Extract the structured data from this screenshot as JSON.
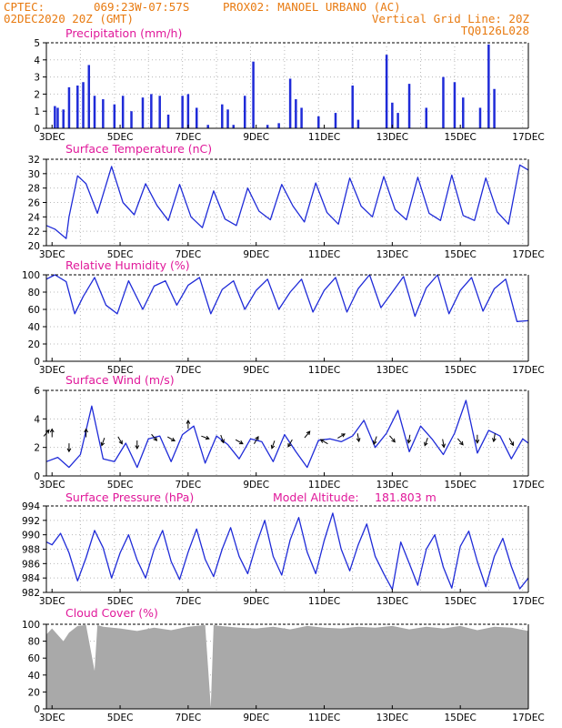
{
  "header": {
    "source": "CPTEC:",
    "coords": "069:23W-07:57S",
    "station": "PROX02: MANOEL URBANO (AC)",
    "run_time": "02DEC2020 20Z (GMT)",
    "grid_note": "Vertical Grid Line: 20Z",
    "model_code": "TQ0126L028"
  },
  "colors": {
    "header_orange": "#e87a10",
    "title_magenta": "#e0189a",
    "series_blue": "#1f2bd8",
    "cloud_gray": "#a9a9a9",
    "arrow_black": "#000000"
  },
  "x_axis": {
    "start": "2020-12-02T20:00Z",
    "end": "2020-12-17T00:00Z",
    "ticks": [
      {
        "date": "2020-12-03",
        "label": "3DEC"
      },
      {
        "date": "2020-12-05",
        "label": "5DEC"
      },
      {
        "date": "2020-12-07",
        "label": "7DEC"
      },
      {
        "date": "2020-12-09",
        "label": "9DEC"
      },
      {
        "date": "2020-12-11",
        "label": "11DEC"
      },
      {
        "date": "2020-12-13",
        "label": "13DEC"
      },
      {
        "date": "2020-12-15",
        "label": "15DEC"
      },
      {
        "date": "2020-12-17",
        "label": "17DEC"
      }
    ]
  },
  "chart_data": [
    {
      "type": "bar",
      "title": "Precipitation (mm/h)",
      "ylim": [
        0,
        5
      ],
      "yticks": [
        0,
        1,
        2,
        3,
        4,
        5
      ],
      "grid": "dotted",
      "color": "#1f2bd8",
      "x": [
        "2020-12-03T02:00Z",
        "2020-12-03T04:00Z",
        "2020-12-03T08:00Z",
        "2020-12-03T12:00Z",
        "2020-12-03T18:00Z",
        "2020-12-03T22:00Z",
        "2020-12-04T02:00Z",
        "2020-12-04T06:00Z",
        "2020-12-04T12:00Z",
        "2020-12-04T20:00Z",
        "2020-12-05T02:00Z",
        "2020-12-05T08:00Z",
        "2020-12-05T16:00Z",
        "2020-12-05T22:00Z",
        "2020-12-06T04:00Z",
        "2020-12-06T10:00Z",
        "2020-12-06T20:00Z",
        "2020-12-07T00:00Z",
        "2020-12-07T06:00Z",
        "2020-12-07T14:00Z",
        "2020-12-08T00:00Z",
        "2020-12-08T04:00Z",
        "2020-12-08T08:00Z",
        "2020-12-08T16:00Z",
        "2020-12-08T22:00Z",
        "2020-12-09T08:00Z",
        "2020-12-09T16:00Z",
        "2020-12-10T00:00Z",
        "2020-12-10T04:00Z",
        "2020-12-10T08:00Z",
        "2020-12-10T20:00Z",
        "2020-12-11T08:00Z",
        "2020-12-11T20:00Z",
        "2020-12-12T00:00Z",
        "2020-12-12T20:00Z",
        "2020-12-13T00:00Z",
        "2020-12-13T04:00Z",
        "2020-12-13T12:00Z",
        "2020-12-14T00:00Z",
        "2020-12-14T12:00Z",
        "2020-12-14T20:00Z",
        "2020-12-15T02:00Z",
        "2020-12-15T14:00Z",
        "2020-12-15T20:00Z",
        "2020-12-16T00:00Z"
      ],
      "values": [
        1.3,
        1.2,
        1.1,
        2.4,
        2.5,
        2.7,
        3.7,
        1.9,
        1.7,
        1.4,
        1.9,
        1.0,
        1.8,
        2.0,
        1.9,
        0.8,
        1.9,
        2.0,
        1.2,
        0.2,
        1.4,
        1.1,
        0.2,
        1.9,
        3.9,
        0.2,
        0.3,
        2.9,
        1.7,
        1.2,
        0.7,
        0.9,
        2.5,
        0.5,
        4.3,
        1.5,
        0.9,
        2.6,
        1.2,
        3.0,
        2.7,
        1.8,
        1.2,
        4.9,
        2.3
      ]
    },
    {
      "type": "line",
      "title": "Surface Temperature (nC)",
      "ylim": [
        20,
        32
      ],
      "yticks": [
        20,
        22,
        24,
        26,
        28,
        30,
        32
      ],
      "grid": "dotted",
      "color": "#1f2bd8",
      "x": [
        "2020-12-02T20:00Z",
        "2020-12-03T02:00Z",
        "2020-12-03T10:00Z",
        "2020-12-03T12:00Z",
        "2020-12-03T18:00Z",
        "2020-12-04T00:00Z",
        "2020-12-04T08:00Z",
        "2020-12-04T18:00Z",
        "2020-12-05T02:00Z",
        "2020-12-05T10:00Z",
        "2020-12-05T18:00Z",
        "2020-12-06T02:00Z",
        "2020-12-06T10:00Z",
        "2020-12-06T18:00Z",
        "2020-12-07T02:00Z",
        "2020-12-07T10:00Z",
        "2020-12-07T18:00Z",
        "2020-12-08T02:00Z",
        "2020-12-08T10:00Z",
        "2020-12-08T18:00Z",
        "2020-12-09T02:00Z",
        "2020-12-09T10:00Z",
        "2020-12-09T18:00Z",
        "2020-12-10T02:00Z",
        "2020-12-10T10:00Z",
        "2020-12-10T18:00Z",
        "2020-12-11T02:00Z",
        "2020-12-11T10:00Z",
        "2020-12-11T18:00Z",
        "2020-12-12T02:00Z",
        "2020-12-12T10:00Z",
        "2020-12-12T18:00Z",
        "2020-12-13T02:00Z",
        "2020-12-13T10:00Z",
        "2020-12-13T18:00Z",
        "2020-12-14T02:00Z",
        "2020-12-14T10:00Z",
        "2020-12-14T18:00Z",
        "2020-12-15T02:00Z",
        "2020-12-15T10:00Z",
        "2020-12-15T18:00Z",
        "2020-12-16T02:00Z",
        "2020-12-16T10:00Z",
        "2020-12-16T18:00Z",
        "2020-12-17T00:00Z"
      ],
      "values": [
        22.8,
        22.3,
        21.0,
        24.0,
        29.7,
        28.6,
        24.5,
        31.0,
        26.0,
        24.3,
        28.6,
        25.6,
        23.5,
        28.5,
        24.0,
        22.5,
        27.6,
        23.7,
        22.8,
        28.0,
        24.8,
        23.6,
        28.5,
        25.5,
        23.3,
        28.7,
        24.6,
        23.0,
        29.4,
        25.5,
        24.0,
        29.6,
        25.0,
        23.6,
        29.5,
        24.5,
        23.5,
        29.8,
        24.2,
        23.5,
        29.4,
        24.7,
        23.0,
        31.2,
        30.5
      ]
    },
    {
      "type": "line",
      "title": "Relative Humidity (%)",
      "ylim": [
        0,
        100
      ],
      "yticks": [
        0,
        20,
        40,
        60,
        80,
        100
      ],
      "grid": "dotted",
      "color": "#1f2bd8",
      "x": [
        "2020-12-02T20:00Z",
        "2020-12-03T02:00Z",
        "2020-12-03T10:00Z",
        "2020-12-03T16:00Z",
        "2020-12-03T22:00Z",
        "2020-12-04T06:00Z",
        "2020-12-04T14:00Z",
        "2020-12-04T22:00Z",
        "2020-12-05T06:00Z",
        "2020-12-05T16:00Z",
        "2020-12-06T00:00Z",
        "2020-12-06T08:00Z",
        "2020-12-06T16:00Z",
        "2020-12-07T00:00Z",
        "2020-12-07T08:00Z",
        "2020-12-07T16:00Z",
        "2020-12-08T00:00Z",
        "2020-12-08T08:00Z",
        "2020-12-08T16:00Z",
        "2020-12-09T00:00Z",
        "2020-12-09T08:00Z",
        "2020-12-09T16:00Z",
        "2020-12-10T00:00Z",
        "2020-12-10T08:00Z",
        "2020-12-10T16:00Z",
        "2020-12-11T00:00Z",
        "2020-12-11T08:00Z",
        "2020-12-11T16:00Z",
        "2020-12-12T00:00Z",
        "2020-12-12T08:00Z",
        "2020-12-12T16:00Z",
        "2020-12-13T00:00Z",
        "2020-12-13T08:00Z",
        "2020-12-13T16:00Z",
        "2020-12-14T00:00Z",
        "2020-12-14T08:00Z",
        "2020-12-14T16:00Z",
        "2020-12-15T00:00Z",
        "2020-12-15T08:00Z",
        "2020-12-15T16:00Z",
        "2020-12-16T00:00Z",
        "2020-12-16T08:00Z",
        "2020-12-16T16:00Z",
        "2020-12-17T00:00Z"
      ],
      "values": [
        95,
        100,
        92,
        55,
        75,
        97,
        65,
        55,
        93,
        60,
        87,
        93,
        65,
        88,
        97,
        55,
        83,
        93,
        60,
        82,
        95,
        60,
        80,
        95,
        57,
        82,
        97,
        57,
        84,
        100,
        62,
        80,
        98,
        52,
        85,
        100,
        55,
        82,
        97,
        58,
        84,
        95,
        46,
        47
      ]
    },
    {
      "type": "line",
      "title": "Surface Wind (m/s)",
      "ylim": [
        0,
        6
      ],
      "yticks": [
        0,
        2,
        4,
        6
      ],
      "grid": "dotted",
      "color": "#1f2bd8",
      "x": [
        "2020-12-02T20:00Z",
        "2020-12-03T04:00Z",
        "2020-12-03T12:00Z",
        "2020-12-03T20:00Z",
        "2020-12-04T04:00Z",
        "2020-12-04T12:00Z",
        "2020-12-04T20:00Z",
        "2020-12-05T04:00Z",
        "2020-12-05T12:00Z",
        "2020-12-05T20:00Z",
        "2020-12-06T04:00Z",
        "2020-12-06T12:00Z",
        "2020-12-06T20:00Z",
        "2020-12-07T04:00Z",
        "2020-12-07T12:00Z",
        "2020-12-07T20:00Z",
        "2020-12-08T04:00Z",
        "2020-12-08T12:00Z",
        "2020-12-08T20:00Z",
        "2020-12-09T04:00Z",
        "2020-12-09T12:00Z",
        "2020-12-09T20:00Z",
        "2020-12-10T04:00Z",
        "2020-12-10T12:00Z",
        "2020-12-10T20:00Z",
        "2020-12-11T04:00Z",
        "2020-12-11T12:00Z",
        "2020-12-11T20:00Z",
        "2020-12-12T04:00Z",
        "2020-12-12T12:00Z",
        "2020-12-12T20:00Z",
        "2020-12-13T04:00Z",
        "2020-12-13T12:00Z",
        "2020-12-13T20:00Z",
        "2020-12-14T04:00Z",
        "2020-12-14T12:00Z",
        "2020-12-14T20:00Z",
        "2020-12-15T04:00Z",
        "2020-12-15T12:00Z",
        "2020-12-15T20:00Z",
        "2020-12-16T04:00Z",
        "2020-12-16T12:00Z",
        "2020-12-16T20:00Z",
        "2020-12-17T00:00Z"
      ],
      "values": [
        1.0,
        1.3,
        0.6,
        1.5,
        4.9,
        1.2,
        1.0,
        2.3,
        0.6,
        2.6,
        2.8,
        1.0,
        2.9,
        3.5,
        0.9,
        2.8,
        2.2,
        1.2,
        2.6,
        2.4,
        1.0,
        2.9,
        1.7,
        0.6,
        2.5,
        2.6,
        2.4,
        2.8,
        3.9,
        2.0,
        3.0,
        4.6,
        1.7,
        3.5,
        2.6,
        1.5,
        3.0,
        5.3,
        1.6,
        3.2,
        2.8,
        1.2,
        2.6,
        2.3
      ],
      "arrows": {
        "x": [
          "2020-12-02T20:00Z",
          "2020-12-03T00:00Z",
          "2020-12-03T12:00Z",
          "2020-12-04T00:00Z",
          "2020-12-04T12:00Z",
          "2020-12-05T00:00Z",
          "2020-12-05T12:00Z",
          "2020-12-06T00:00Z",
          "2020-12-06T12:00Z",
          "2020-12-07T00:00Z",
          "2020-12-07T12:00Z",
          "2020-12-08T00:00Z",
          "2020-12-08T12:00Z",
          "2020-12-09T00:00Z",
          "2020-12-09T12:00Z",
          "2020-12-10T00:00Z",
          "2020-12-10T12:00Z",
          "2020-12-11T00:00Z",
          "2020-12-11T12:00Z",
          "2020-12-12T00:00Z",
          "2020-12-12T12:00Z",
          "2020-12-13T00:00Z",
          "2020-12-13T12:00Z",
          "2020-12-14T00:00Z",
          "2020-12-14T12:00Z",
          "2020-12-15T00:00Z",
          "2020-12-15T12:00Z",
          "2020-12-16T00:00Z",
          "2020-12-16T12:00Z"
        ],
        "speed": [
          3.0,
          3.0,
          2.0,
          3.0,
          2.4,
          2.5,
          2.2,
          2.7,
          2.6,
          3.6,
          2.7,
          2.6,
          2.4,
          2.5,
          2.2,
          2.3,
          2.9,
          2.4,
          2.8,
          2.7,
          2.5,
          2.6,
          2.6,
          2.4,
          2.3,
          2.4,
          2.6,
          2.7,
          2.4
        ],
        "direction_deg": [
          40,
          0,
          180,
          0,
          200,
          150,
          180,
          140,
          120,
          0,
          110,
          160,
          120,
          30,
          200,
          210,
          40,
          300,
          60,
          170,
          200,
          140,
          190,
          200,
          170,
          140,
          180,
          190,
          150
        ]
      }
    },
    {
      "type": "line",
      "title": "Surface Pressure (hPa)",
      "ylim": [
        982,
        994
      ],
      "yticks": [
        982,
        984,
        986,
        988,
        990,
        992,
        994
      ],
      "grid": "dotted",
      "color": "#1f2bd8",
      "annotation": {
        "label": "Model Altitude:",
        "value": "181.803 m"
      },
      "x": [
        "2020-12-02T20:00Z",
        "2020-12-03T00:00Z",
        "2020-12-03T06:00Z",
        "2020-12-03T12:00Z",
        "2020-12-03T18:00Z",
        "2020-12-04T00:00Z",
        "2020-12-04T06:00Z",
        "2020-12-04T12:00Z",
        "2020-12-04T18:00Z",
        "2020-12-05T00:00Z",
        "2020-12-05T06:00Z",
        "2020-12-05T12:00Z",
        "2020-12-05T18:00Z",
        "2020-12-06T00:00Z",
        "2020-12-06T06:00Z",
        "2020-12-06T12:00Z",
        "2020-12-06T18:00Z",
        "2020-12-07T00:00Z",
        "2020-12-07T06:00Z",
        "2020-12-07T12:00Z",
        "2020-12-07T18:00Z",
        "2020-12-08T00:00Z",
        "2020-12-08T06:00Z",
        "2020-12-08T12:00Z",
        "2020-12-08T18:00Z",
        "2020-12-09T00:00Z",
        "2020-12-09T06:00Z",
        "2020-12-09T12:00Z",
        "2020-12-09T18:00Z",
        "2020-12-10T00:00Z",
        "2020-12-10T06:00Z",
        "2020-12-10T12:00Z",
        "2020-12-10T18:00Z",
        "2020-12-11T00:00Z",
        "2020-12-11T06:00Z",
        "2020-12-11T12:00Z",
        "2020-12-11T18:00Z",
        "2020-12-12T00:00Z",
        "2020-12-12T06:00Z",
        "2020-12-12T12:00Z",
        "2020-12-12T18:00Z",
        "2020-12-13T00:00Z",
        "2020-12-13T06:00Z",
        "2020-12-13T12:00Z",
        "2020-12-13T18:00Z",
        "2020-12-14T00:00Z",
        "2020-12-14T06:00Z",
        "2020-12-14T12:00Z",
        "2020-12-14T18:00Z",
        "2020-12-15T00:00Z",
        "2020-12-15T06:00Z",
        "2020-12-15T12:00Z",
        "2020-12-15T18:00Z",
        "2020-12-16T00:00Z",
        "2020-12-16T06:00Z",
        "2020-12-16T12:00Z",
        "2020-12-16T18:00Z",
        "2020-12-17T00:00Z"
      ],
      "values": [
        989.0,
        988.6,
        990.2,
        987.5,
        983.6,
        986.8,
        990.6,
        988.2,
        984.0,
        987.5,
        990.0,
        986.5,
        984.0,
        988.0,
        990.6,
        986.3,
        983.8,
        987.6,
        990.8,
        986.6,
        984.2,
        988.0,
        991.0,
        987.0,
        984.6,
        988.6,
        992.0,
        987.0,
        984.4,
        989.3,
        992.4,
        987.6,
        984.6,
        989.2,
        993.0,
        988.0,
        985.0,
        988.6,
        991.5,
        987.0,
        984.6,
        982.4,
        989.0,
        986.0,
        983.0,
        988.0,
        990.0,
        985.5,
        982.6,
        988.4,
        990.5,
        986.3,
        982.8,
        987.0,
        989.5,
        985.6,
        982.5,
        984.0
      ]
    },
    {
      "type": "area",
      "title": "Cloud Cover (%)",
      "ylim": [
        0,
        100
      ],
      "yticks": [
        0,
        20,
        40,
        60,
        80,
        100
      ],
      "grid": "dotted",
      "color": "#a9a9a9",
      "x": [
        "2020-12-02T20:00Z",
        "2020-12-03T00:00Z",
        "2020-12-03T08:00Z",
        "2020-12-03T12:00Z",
        "2020-12-03T18:00Z",
        "2020-12-04T00:00Z",
        "2020-12-04T06:00Z",
        "2020-12-04T08:00Z",
        "2020-12-04T12:00Z",
        "2020-12-05T00:00Z",
        "2020-12-05T12:00Z",
        "2020-12-06T00:00Z",
        "2020-12-06T12:00Z",
        "2020-12-07T00:00Z",
        "2020-12-07T12:00Z",
        "2020-12-07T16:00Z",
        "2020-12-07T18:00Z",
        "2020-12-07T22:00Z",
        "2020-12-08T12:00Z",
        "2020-12-09T00:00Z",
        "2020-12-09T12:00Z",
        "2020-12-10T00:00Z",
        "2020-12-10T12:00Z",
        "2020-12-11T00:00Z",
        "2020-12-11T12:00Z",
        "2020-12-12T00:00Z",
        "2020-12-12T12:00Z",
        "2020-12-13T00:00Z",
        "2020-12-13T12:00Z",
        "2020-12-14T00:00Z",
        "2020-12-14T12:00Z",
        "2020-12-15T00:00Z",
        "2020-12-15T12:00Z",
        "2020-12-16T00:00Z",
        "2020-12-16T12:00Z",
        "2020-12-17T00:00Z"
      ],
      "values": [
        88,
        95,
        80,
        90,
        98,
        99,
        45,
        99,
        97,
        95,
        92,
        96,
        93,
        97,
        99,
        2,
        99,
        98,
        96,
        95,
        97,
        94,
        98,
        96,
        95,
        97,
        96,
        98,
        94,
        97,
        95,
        98,
        93,
        97,
        96,
        92
      ]
    }
  ]
}
